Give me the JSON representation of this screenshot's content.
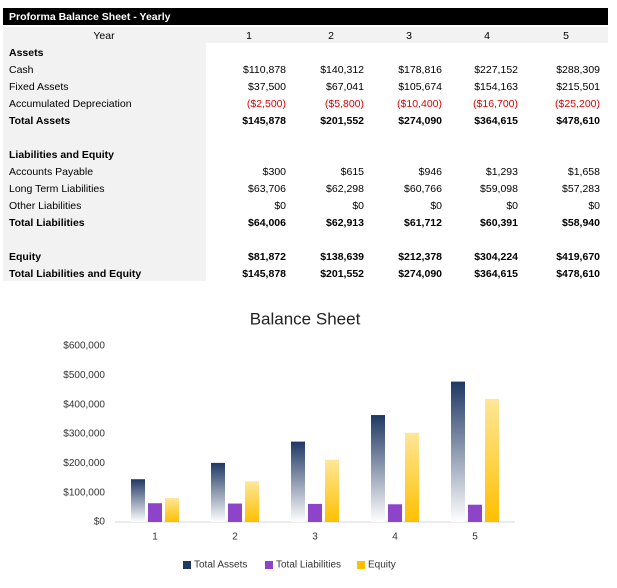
{
  "table": {
    "title": "Proforma Balance Sheet - Yearly",
    "header": [
      "Year",
      "1",
      "2",
      "3",
      "4",
      "5"
    ],
    "sections": [
      {
        "heading": "Assets",
        "rows": [
          {
            "label": "Cash",
            "values": [
              "$110,878",
              "$140,312",
              "$178,816",
              "$227,152",
              "$288,309"
            ]
          },
          {
            "label": "Fixed Assets",
            "values": [
              "$37,500",
              "$67,041",
              "$105,674",
              "$154,163",
              "$215,501"
            ]
          },
          {
            "label": "Accumulated Depreciation",
            "values": [
              "($2,500)",
              "($5,800)",
              "($10,400)",
              "($16,700)",
              "($25,200)"
            ],
            "color": "#e00000"
          },
          {
            "label": "Total Assets",
            "values": [
              "$145,878",
              "$201,552",
              "$274,090",
              "$364,615",
              "$478,610"
            ],
            "bold": true
          }
        ]
      },
      {
        "heading": "Liabilities and Equity",
        "rows": [
          {
            "label": "Accounts Payable",
            "values": [
              "$300",
              "$615",
              "$946",
              "$1,293",
              "$1,658"
            ]
          },
          {
            "label": "Long Term Liabilities",
            "values": [
              "$63,706",
              "$62,298",
              "$60,766",
              "$59,098",
              "$57,283"
            ]
          },
          {
            "label": "Other Liabilities",
            "values": [
              "$0",
              "$0",
              "$0",
              "$0",
              "$0"
            ]
          },
          {
            "label": "Total Liabilities",
            "values": [
              "$64,006",
              "$62,913",
              "$61,712",
              "$60,391",
              "$58,940"
            ],
            "bold": true
          }
        ]
      },
      {
        "rows": [
          {
            "label": "Equity",
            "values": [
              "$81,872",
              "$138,639",
              "$212,378",
              "$304,224",
              "$419,670"
            ],
            "bold": true
          },
          {
            "label": "Total Liabilities and Equity",
            "values": [
              "$145,878",
              "$201,552",
              "$274,090",
              "$364,615",
              "$478,610"
            ],
            "bold": true
          }
        ]
      }
    ]
  },
  "chart_data": {
    "type": "bar",
    "title": "Balance Sheet",
    "categories": [
      "1",
      "2",
      "3",
      "4",
      "5"
    ],
    "series": [
      {
        "name": "Total Assets",
        "color": "#1f3864",
        "values": [
          145878,
          201552,
          274090,
          364615,
          478610
        ]
      },
      {
        "name": "Total Liabilities",
        "color": "#8e44c8",
        "values": [
          64006,
          62913,
          61712,
          60391,
          58940
        ]
      },
      {
        "name": "Equity",
        "color": "#ffc000",
        "values": [
          81872,
          138639,
          212378,
          304224,
          419670
        ]
      }
    ],
    "ylim": [
      0,
      600000
    ],
    "yticks": [
      {
        "value": 0,
        "label": "$0"
      },
      {
        "value": 100000,
        "label": "$100,000"
      },
      {
        "value": 200000,
        "label": "$200,000"
      },
      {
        "value": 300000,
        "label": "$300,000"
      },
      {
        "value": 400000,
        "label": "$400,000"
      },
      {
        "value": 500000,
        "label": "$500,000"
      },
      {
        "value": 600000,
        "label": "$600,000"
      }
    ],
    "legend": "bottom"
  }
}
